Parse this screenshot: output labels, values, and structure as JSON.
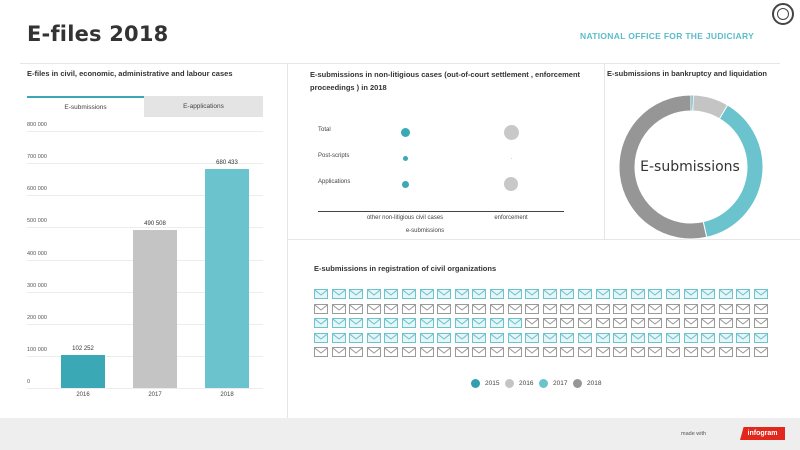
{
  "header": {
    "title": "E-files 2018",
    "org": "NATIONAL OFFICE FOR THE JUDICIARY"
  },
  "bar_section": {
    "title": "E-files in civil, economic, administrative and labour cases",
    "tabs": [
      "E-submissions",
      "E-applications"
    ]
  },
  "dot_section": {
    "title_line1": "E-submissions in non-litigious cases (out-of-court settlement , enforcement",
    "title_line2": "proceedings ) in 2018",
    "rows": [
      "Total",
      "Post-scripts",
      "Applications"
    ],
    "columns": [
      "other non-litigious civil cases",
      "enforcement"
    ],
    "xlabel": "e-submissions"
  },
  "donut_section": {
    "title": "E-submissions in bankruptcy and liquidation",
    "center_label": "E-submissions"
  },
  "env_section": {
    "title": "E-submissions in registration of civil organizations",
    "legend": [
      "2015",
      "2016",
      "2017",
      "2018"
    ]
  },
  "footer": {
    "made_with": "made with",
    "brand": "infogram"
  },
  "colors": {
    "y2015": "#2fa0ac",
    "y2016": "#c4c4c4",
    "y2017": "#6ac3cd",
    "y2018": "#969696",
    "accent": "#5bbcc9"
  },
  "chart_data": [
    {
      "type": "bar",
      "title": "E-files in civil, economic, administrative and labour cases",
      "categories": [
        "2016",
        "2017",
        "2018"
      ],
      "values": [
        102252,
        490508,
        680433
      ],
      "value_labels": [
        "102 252",
        "490 508",
        "680 433"
      ],
      "colors": [
        "#3aa8b5",
        "#c4c4c4",
        "#6ac3cd"
      ],
      "ylim": [
        0,
        800000
      ],
      "yticks": [
        0,
        100000,
        200000,
        300000,
        400000,
        500000,
        600000,
        700000,
        800000
      ],
      "ytick_labels": [
        "0",
        "100 000",
        "200 000",
        "300 000",
        "400 000",
        "500 000",
        "600 000",
        "700 000",
        "800 000"
      ]
    },
    {
      "type": "scatter",
      "title": "E-submissions in non-litigious cases (out-of-court settlement , enforcement proceedings ) in 2018",
      "rows": [
        "Total",
        "Post-scripts",
        "Applications"
      ],
      "columns": [
        "other non-litigious civil cases",
        "enforcement"
      ],
      "sizes": [
        [
          9,
          15
        ],
        [
          5,
          1
        ],
        [
          7,
          14
        ]
      ],
      "colors": [
        "#3aa8b5",
        "#c8c8c8"
      ]
    },
    {
      "type": "pie",
      "title": "E-submissions in bankruptcy and liquidation",
      "labels": [
        "2015",
        "2016",
        "2017",
        "2018"
      ],
      "values": [
        0.5,
        8,
        38,
        53.5
      ],
      "colors": [
        "#2fa0ac",
        "#c4c4c4",
        "#6ac3cd",
        "#969696"
      ]
    },
    {
      "type": "table",
      "title": "E-submissions in registration of civil organizations",
      "rows": 5,
      "columns": 26,
      "legend": [
        "2015",
        "2016",
        "2017",
        "2018"
      ],
      "row_fills": [
        {
          "highlighted": 26,
          "color": "2017"
        },
        {
          "highlighted": 0,
          "color": "2016"
        },
        {
          "highlighted": 12,
          "color": "2017"
        },
        {
          "highlighted": 26,
          "color": "2017"
        },
        {
          "highlighted": 0,
          "color": "2018"
        }
      ]
    }
  ]
}
